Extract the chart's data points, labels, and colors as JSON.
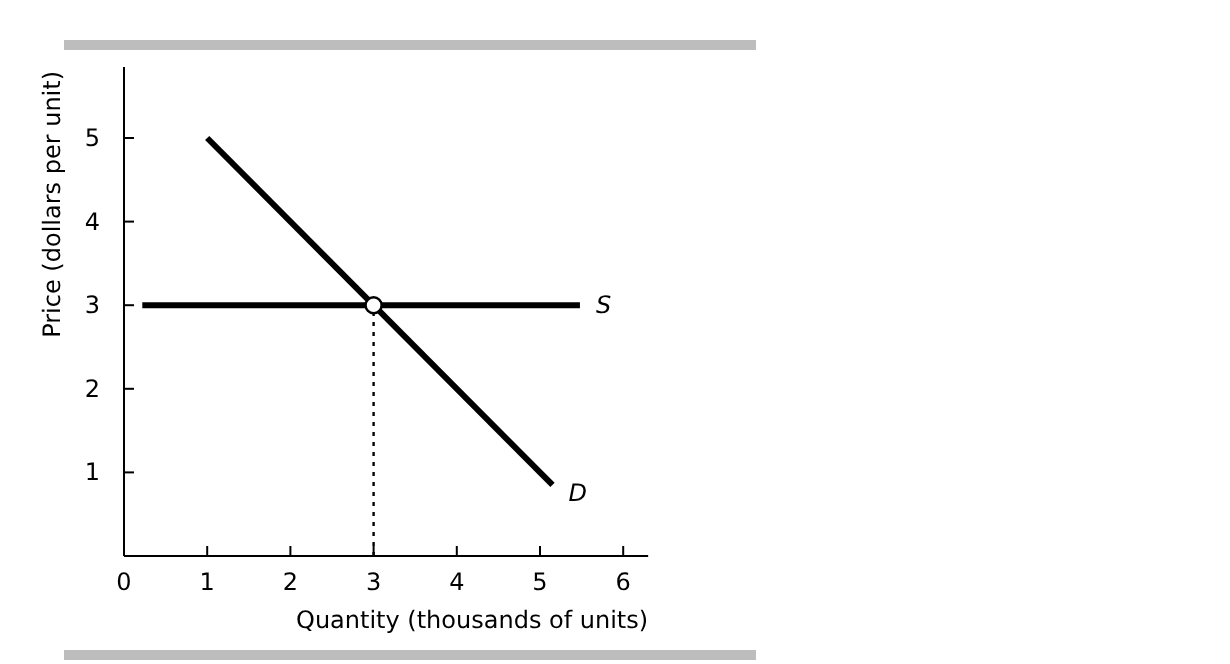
{
  "chart_data": {
    "type": "line",
    "xlabel": "Quantity (thousands of units)",
    "ylabel": "Price (dollars per unit)",
    "xlim": [
      0,
      6.3
    ],
    "ylim": [
      0,
      5.85
    ],
    "xticks": [
      0,
      1,
      2,
      3,
      4,
      5,
      6
    ],
    "yticks": [
      1,
      2,
      3,
      4,
      5
    ],
    "grid": false,
    "ref_lines": [
      {
        "axis": "x",
        "value": 3,
        "line_style": "dotted",
        "color": "#000000"
      }
    ],
    "series": [
      {
        "name": "S",
        "color": "#000000",
        "x": [
          0.22,
          5.48
        ],
        "values": [
          3,
          3
        ],
        "line_style": "solid"
      },
      {
        "name": "D",
        "color": "#000000",
        "x": [
          1,
          5.15
        ],
        "values": [
          5,
          0.85
        ],
        "line_style": "solid"
      },
      {
        "type": "scatter",
        "color": "#000000",
        "x": [
          3
        ],
        "values": [
          3
        ],
        "marker": "circle"
      }
    ]
  }
}
